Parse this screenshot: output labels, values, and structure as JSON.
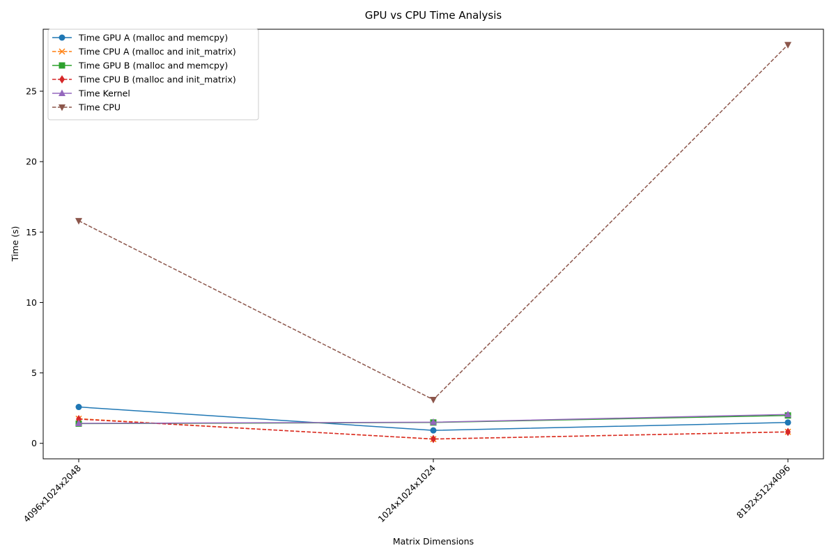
{
  "chart_data": {
    "type": "line",
    "title": "GPU vs CPU Time Analysis",
    "xlabel": "Matrix Dimensions",
    "ylabel": "Time (s)",
    "categories": [
      "4096x1024x2048",
      "1024x1024x1024",
      "8192x512x4096"
    ],
    "ylim": [
      -1.1,
      29.4
    ],
    "yticks": [
      0,
      5,
      10,
      15,
      20,
      25
    ],
    "grid": false,
    "legend_position": "top-left",
    "series": [
      {
        "name": "Time GPU A (malloc and memcpy)",
        "values": [
          2.58,
          0.92,
          1.48
        ],
        "color": "#1f77b4",
        "dash": "solid",
        "marker": "circle"
      },
      {
        "name": "Time CPU A (malloc and init_matrix)",
        "values": [
          1.75,
          0.3,
          0.82
        ],
        "color": "#ff7f0e",
        "dash": "dashed",
        "marker": "x"
      },
      {
        "name": "Time GPU B (malloc and memcpy)",
        "values": [
          1.4,
          1.48,
          1.98
        ],
        "color": "#2ca02c",
        "dash": "solid",
        "marker": "square"
      },
      {
        "name": "Time CPU B (malloc and init_matrix)",
        "values": [
          1.72,
          0.31,
          0.81
        ],
        "color": "#d62728",
        "dash": "dashed",
        "marker": "diamond"
      },
      {
        "name": "Time Kernel",
        "values": [
          1.42,
          1.5,
          2.05
        ],
        "color": "#9467bd",
        "dash": "solid",
        "marker": "triangle-up"
      },
      {
        "name": "Time CPU",
        "values": [
          15.8,
          3.1,
          28.3
        ],
        "color": "#8c564b",
        "dash": "dashed",
        "marker": "triangle-down"
      }
    ]
  }
}
